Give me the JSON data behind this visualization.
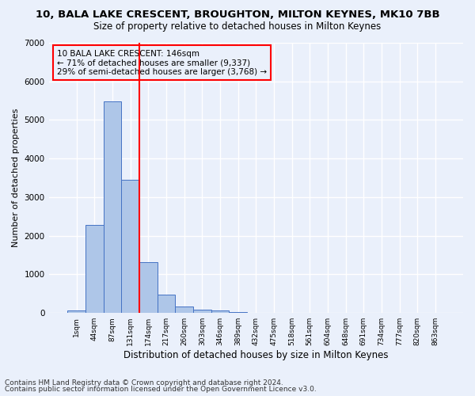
{
  "title1": "10, BALA LAKE CRESCENT, BROUGHTON, MILTON KEYNES, MK10 7BB",
  "title2": "Size of property relative to detached houses in Milton Keynes",
  "xlabel": "Distribution of detached houses by size in Milton Keynes",
  "ylabel": "Number of detached properties",
  "footnote1": "Contains HM Land Registry data © Crown copyright and database right 2024.",
  "footnote2": "Contains public sector information licensed under the Open Government Licence v3.0.",
  "bar_labels": [
    "1sqm",
    "44sqm",
    "87sqm",
    "131sqm",
    "174sqm",
    "217sqm",
    "260sqm",
    "303sqm",
    "346sqm",
    "389sqm",
    "432sqm",
    "475sqm",
    "518sqm",
    "561sqm",
    "604sqm",
    "648sqm",
    "691sqm",
    "734sqm",
    "777sqm",
    "820sqm",
    "863sqm"
  ],
  "bar_values": [
    75,
    2280,
    5480,
    3450,
    1310,
    470,
    165,
    95,
    60,
    30,
    0,
    0,
    0,
    0,
    0,
    0,
    0,
    0,
    0,
    0,
    0
  ],
  "bar_color": "#aec6e8",
  "bar_edge_color": "#4472c4",
  "ylim": [
    0,
    7000
  ],
  "yticks": [
    0,
    1000,
    2000,
    3000,
    4000,
    5000,
    6000,
    7000
  ],
  "vline_x": 3.5,
  "vline_color": "red",
  "annotation_title": "10 BALA LAKE CRESCENT: 146sqm",
  "annotation_line1": "← 71% of detached houses are smaller (9,337)",
  "annotation_line2": "29% of semi-detached houses are larger (3,768) →",
  "bg_color": "#eaf0fb",
  "grid_color": "#ffffff",
  "title1_fontsize": 9.5,
  "title2_fontsize": 8.5,
  "xlabel_fontsize": 8.5,
  "ylabel_fontsize": 8,
  "footnote_fontsize": 6.5,
  "annotation_fontsize": 7.5
}
